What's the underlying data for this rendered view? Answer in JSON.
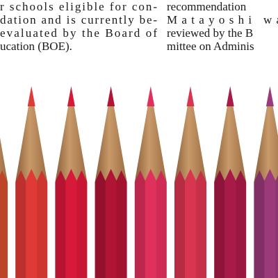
{
  "columns": [
    {
      "lines": [
        "r schools eligible for con-",
        "dation and is currently be-",
        " evaluated by the Board of",
        "ucation (BOE)."
      ]
    },
    {
      "lines": [
        "recommendation",
        "Matayoshi was",
        "reviewed by the B",
        "mittee on Adminis"
      ]
    }
  ]
}
